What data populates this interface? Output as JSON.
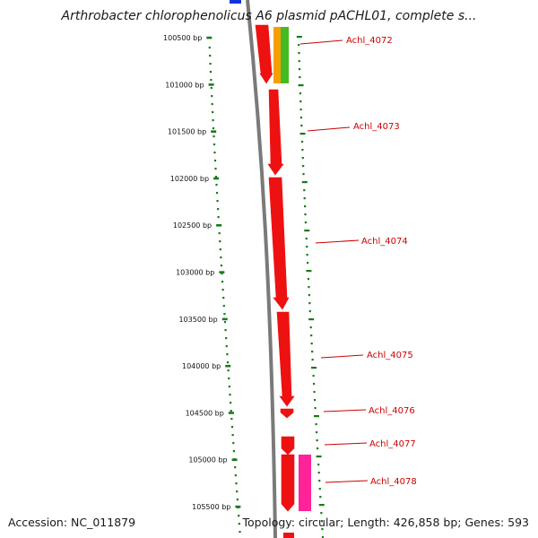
{
  "title": "Arthrobacter chlorophenolicus A6 plasmid pACHL01, complete s...",
  "accession": "Accession: NC_011879",
  "summary": "Topology: circular; Length: 426,858 bp; Genes: 593",
  "ruler": {
    "color": "#1a7a1a",
    "ticks": [
      "100500 bp",
      "101000 bp",
      "101500 bp",
      "102000 bp",
      "102500 bp",
      "103000 bp",
      "103500 bp",
      "104000 bp",
      "104500 bp",
      "105000 bp",
      "105500 bp"
    ]
  },
  "backbone_color": "#7a7a7a",
  "genes": [
    {
      "label": "Achl_4072",
      "color": "#ee1111"
    },
    {
      "label": "Achl_4073",
      "color": "#ee1111"
    },
    {
      "label": "Achl_4074",
      "color": "#ee1111"
    },
    {
      "label": "Achl_4075",
      "color": "#ee1111"
    },
    {
      "label": "Achl_4076",
      "color": "#ee1111"
    },
    {
      "label": "Achl_4077",
      "color": "#ee1111"
    },
    {
      "label": "Achl_4078",
      "color": "#ee1111"
    }
  ],
  "colors": {
    "gene_red": "#ee1111",
    "gene_orange": "#f5a000",
    "gene_green": "#44bb22",
    "gene_pink": "#ff2299",
    "gene_blue": "#1133dd",
    "label_red": "#cc0000"
  }
}
